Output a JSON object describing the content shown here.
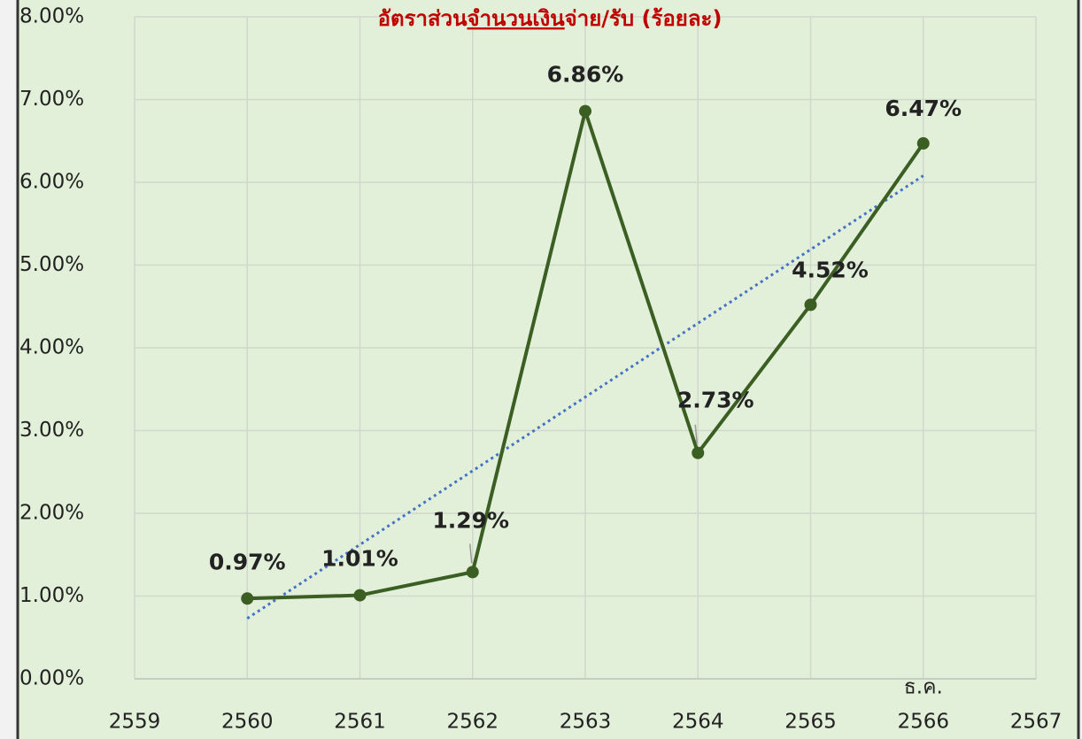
{
  "chart_data": {
    "type": "line",
    "title_parts": [
      "อัตราส่วน",
      "จำนวนเงิน",
      "จ่าย/รับ (ร้อยละ)"
    ],
    "x": [
      2560,
      2561,
      2562,
      2563,
      2564,
      2565,
      2566
    ],
    "series": [
      {
        "color": "#3b5e23",
        "values": [
          0.97,
          1.01,
          1.29,
          6.86,
          2.73,
          4.52,
          6.47
        ],
        "value_labels": [
          "0.97%",
          "1.01%",
          "1.29%",
          "6.86%",
          "2.73%",
          "4.52%",
          "6.47%"
        ]
      }
    ],
    "trendline": {
      "x": [
        2560,
        2566
      ],
      "values": [
        0.73,
        6.08
      ],
      "color": "#4472c4"
    },
    "annotations": [
      {
        "text": "ธ.ค.",
        "x": 2566
      }
    ],
    "xlim": [
      2559,
      2567
    ],
    "xticks": [
      2559,
      2560,
      2561,
      2562,
      2563,
      2564,
      2565,
      2566,
      2567
    ],
    "ylim": [
      0,
      8
    ],
    "yticks": [
      {
        "value": 0,
        "label": "0.00%"
      },
      {
        "value": 1,
        "label": "1.00%"
      },
      {
        "value": 2,
        "label": "2.00%"
      },
      {
        "value": 3,
        "label": "3.00%"
      },
      {
        "value": 4,
        "label": "4.00%"
      },
      {
        "value": 5,
        "label": "5.00%"
      },
      {
        "value": 6,
        "label": "6.00%"
      },
      {
        "value": 7,
        "label": "7.00%"
      },
      {
        "value": 8,
        "label": "8.00%"
      }
    ],
    "grid": true
  }
}
